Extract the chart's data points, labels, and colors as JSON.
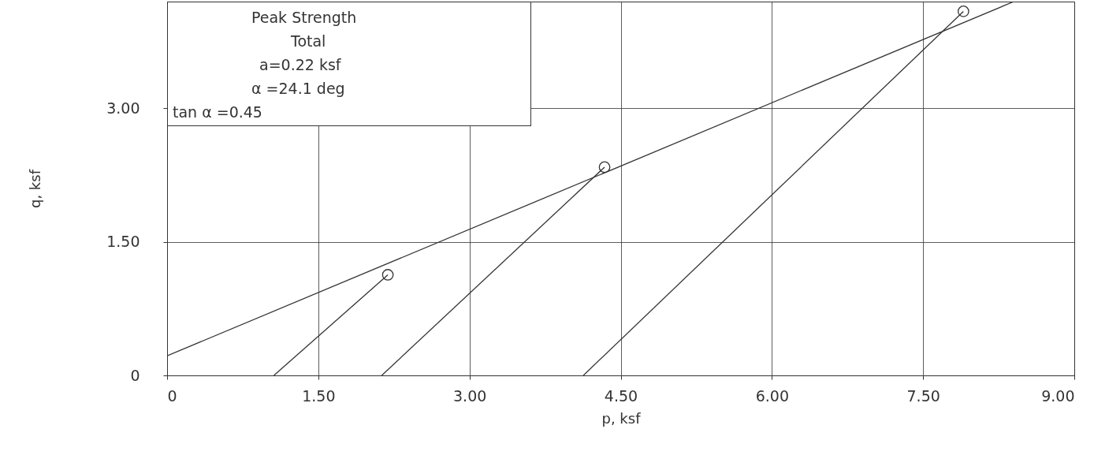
{
  "chart_data": {
    "type": "line",
    "xlabel": "p, ksf",
    "ylabel": "q, ksf",
    "annotations": [
      "Peak Strength",
      "Total",
      "a=0.22 ksf",
      "α =24.1 deg",
      "tan α =0.45"
    ],
    "series": [
      {
        "color": "#333333",
        "x": [
          0,
          8.4
        ],
        "values": [
          0.22,
          4.2
        ]
      },
      {
        "color": "#333333",
        "x": [
          1.06,
          2.19
        ],
        "values": [
          0,
          1.13
        ]
      },
      {
        "color": "#333333",
        "x": [
          2.13,
          4.34
        ],
        "values": [
          0,
          2.34
        ]
      },
      {
        "color": "#333333",
        "x": [
          4.13,
          7.9
        ],
        "values": [
          0,
          4.09
        ]
      },
      {
        "type": "scatter",
        "marker": "circle",
        "color": "#333333",
        "x": [
          2.19,
          4.34,
          7.9
        ],
        "values": [
          1.13,
          2.34,
          4.09
        ]
      }
    ],
    "xlim": [
      0,
      9
    ],
    "ylim": [
      0,
      4.2
    ],
    "xticks": [
      0,
      {
        "value": 1.5,
        "label": "1.50"
      },
      {
        "value": 3,
        "label": "3.00"
      },
      {
        "value": 4.5,
        "label": "4.50"
      },
      {
        "value": 6,
        "label": "6.00"
      },
      {
        "value": 7.5,
        "label": "7.50"
      },
      {
        "value": 9,
        "label": "9.00"
      }
    ],
    "yticks": [
      0,
      {
        "value": 1.5,
        "label": "1.50"
      },
      {
        "value": 3,
        "label": "3.00"
      }
    ],
    "grid": true,
    "line_style": "solid"
  }
}
